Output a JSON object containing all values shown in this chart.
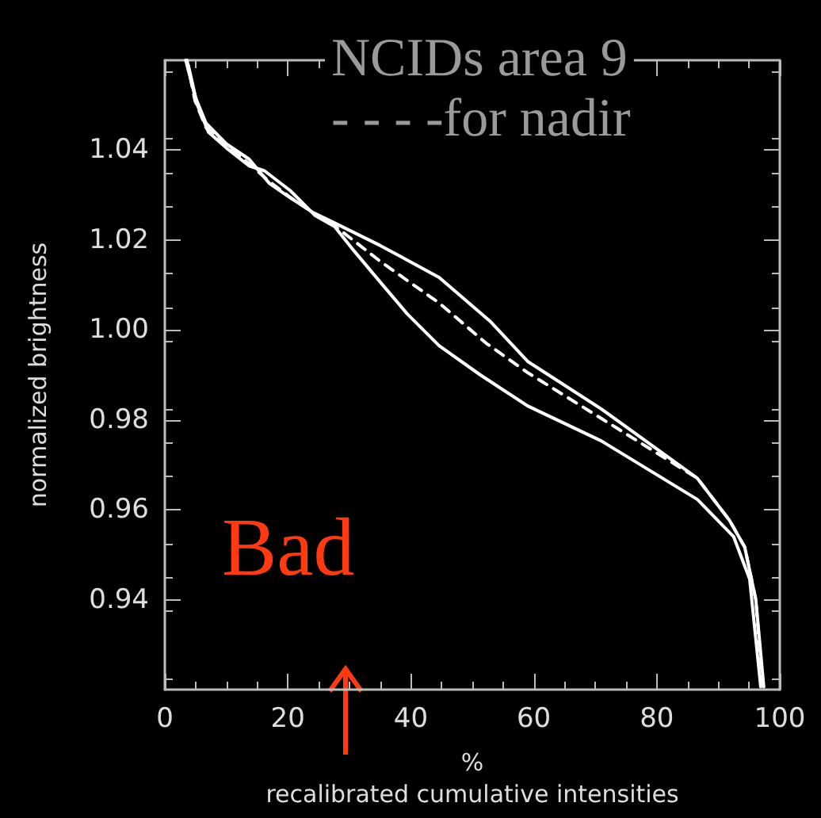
{
  "chart_data": {
    "type": "line",
    "xlabel": "%\nrecalibrated cumulative intensities",
    "ylabel": "normalized brightness",
    "xlim": [
      0,
      100
    ],
    "xticks": [
      0,
      20,
      40,
      60,
      80,
      100
    ],
    "ylim": [
      0.92,
      1.06
    ],
    "yticks": [
      0.94,
      0.96,
      0.98,
      {
        "value": 1.0,
        "label": "1.00"
      },
      1.02,
      1.04
    ],
    "grid": false,
    "marker": "none",
    "annotations": [
      "NCIDs area 9",
      "- - - -for nadir",
      "Bad"
    ],
    "series": [
      {
        "color": "#ffffff",
        "line_style": "solid",
        "x": [
          3.4,
          4.9,
          6.7,
          10,
          13.7,
          17,
          20.4,
          24,
          27.3,
          35,
          44.6,
          53,
          59,
          71,
          86.6,
          91.8,
          94.3,
          96.1,
          97.4
        ],
        "values": [
          1.06,
          1.052,
          1.046,
          1.0414,
          1.038,
          1.0326,
          1.0294,
          1.0262,
          1.024,
          1.0188,
          1.0117,
          1.0018,
          0.993,
          0.9824,
          0.967,
          0.9577,
          0.9517,
          0.94,
          0.9206
        ]
      },
      {
        "color": "#ffffff",
        "line_style": "solid",
        "x": [
          3.8,
          5.3,
          7.1,
          10,
          13.7,
          16.2,
          20.4,
          24.4,
          27.6,
          30.7,
          35,
          39.4,
          44.6,
          51.3,
          59,
          71,
          86.6,
          92.5,
          95.1,
          96.9
        ],
        "values": [
          1.059,
          1.05,
          1.044,
          1.0405,
          1.0365,
          1.0354,
          1.031,
          1.0255,
          1.023,
          1.0177,
          1.0107,
          1.0036,
          0.9965,
          0.99,
          0.9831,
          0.9753,
          0.9623,
          0.954,
          0.9446,
          0.9206
        ]
      },
      {
        "color": "#ffffff",
        "line_style": "dashed",
        "x": [
          3.6,
          4.9,
          6.7,
          10,
          13.7,
          17,
          20.4,
          24,
          27.3,
          35,
          44.6,
          52.3,
          59,
          73.7,
          86.6,
          91.8,
          94.3,
          96.1,
          97.2
        ],
        "values": [
          1.06,
          1.051,
          1.045,
          1.041,
          1.037,
          1.033,
          1.0295,
          1.0262,
          1.0235,
          1.0153,
          1.006,
          0.997,
          0.9905,
          0.978,
          0.967,
          0.9577,
          0.9517,
          0.94,
          0.9206
        ]
      }
    ]
  }
}
